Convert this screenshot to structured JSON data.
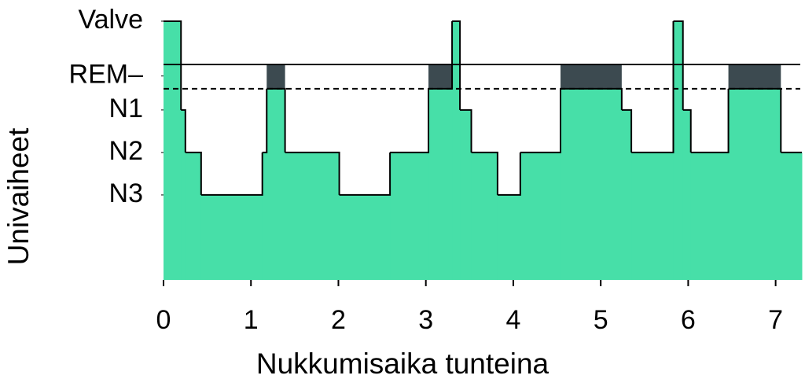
{
  "chart_data": {
    "type": "hypnogram",
    "xlabel": "Nukkumisaika tunteina",
    "ylabel": "Univaiheet",
    "x": [
      0,
      0.2,
      0.25,
      0.43,
      1.13,
      1.18,
      1.39,
      2.01,
      2.59,
      3.03,
      3.3,
      3.39,
      3.52,
      3.82,
      4.08,
      4.54,
      5.24,
      5.35,
      5.83,
      5.94,
      6.03,
      6.46,
      7.06
    ],
    "values": [
      5.09,
      3,
      2,
      1,
      2,
      3.5,
      2,
      1,
      2,
      3.5,
      5.09,
      3,
      2,
      1,
      2,
      3.5,
      3,
      2,
      5.09,
      3,
      2,
      3.5,
      2
    ],
    "color": "#47dfa8",
    "rem_color": "#3c4a50",
    "rem_band": [
      3.5,
      4.07
    ],
    "xlim": [
      0,
      7.3
    ],
    "xticks": [
      0,
      1,
      2,
      3,
      4,
      5,
      6,
      7
    ],
    "ylim": [
      -1,
      5.2
    ],
    "yticks": [
      {
        "value": 1,
        "label": "N3"
      },
      {
        "value": 2,
        "label": "N2"
      },
      {
        "value": 3,
        "label": "N1"
      },
      {
        "value": 3.8,
        "label": "REM–"
      },
      {
        "value": 5.09,
        "label": "Valve"
      }
    ]
  }
}
